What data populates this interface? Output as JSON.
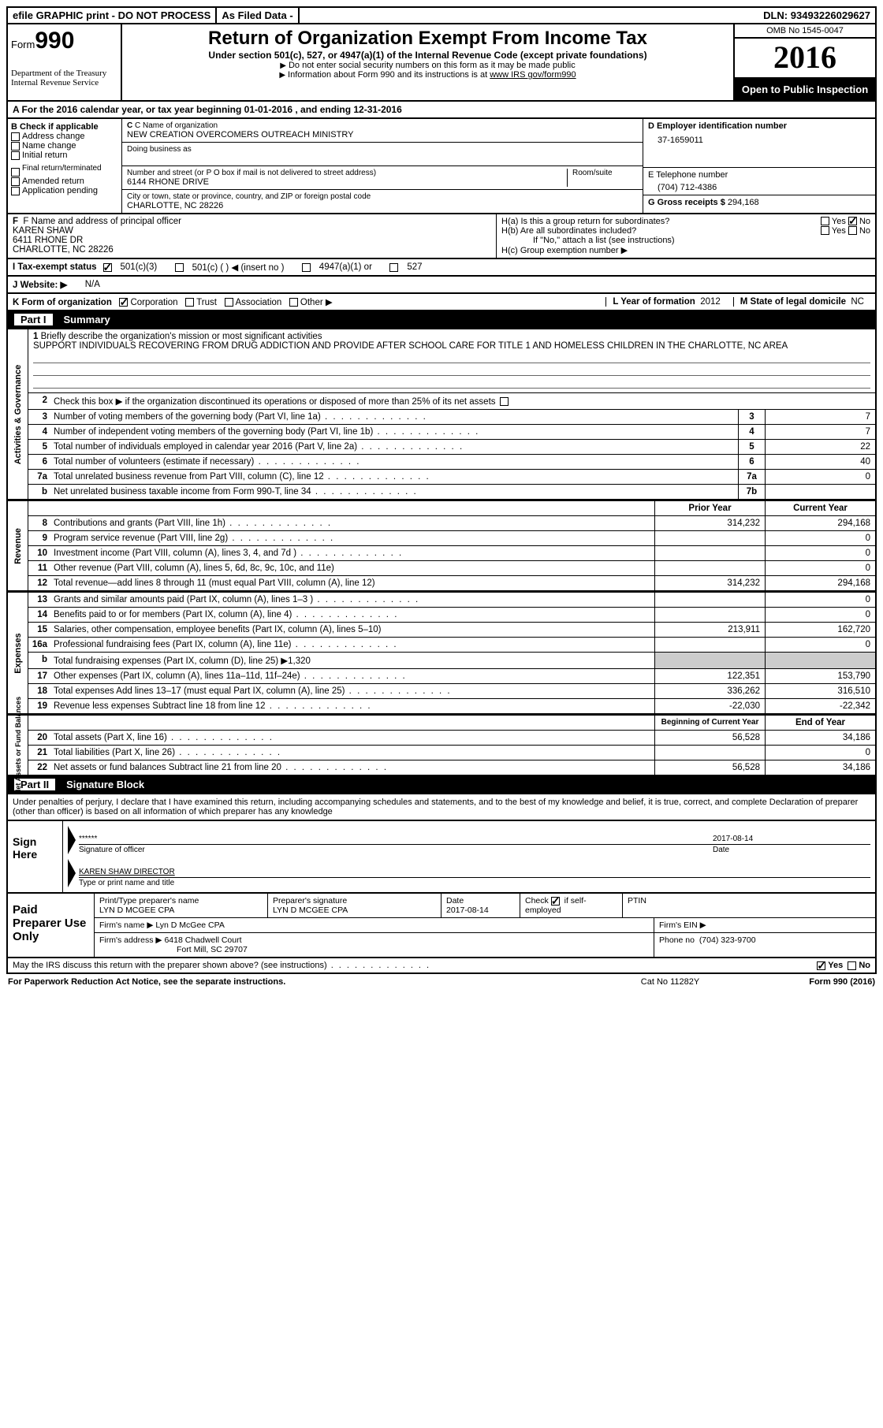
{
  "topbar": {
    "efile": "efile GRAPHIC print - DO NOT PROCESS",
    "asfiled": "As Filed Data -",
    "dln_label": "DLN:",
    "dln": "93493226029627"
  },
  "header": {
    "form_label": "Form",
    "form_num": "990",
    "dept1": "Department of the Treasury",
    "dept2": "Internal Revenue Service",
    "title": "Return of Organization Exempt From Income Tax",
    "subtitle": "Under section 501(c), 527, or 4947(a)(1) of the Internal Revenue Code (except private foundations)",
    "note1": "Do not enter social security numbers on this form as it may be made public",
    "note2": "Information about Form 990 and its instructions is at",
    "note2_link": "www IRS gov/form990",
    "omb": "OMB No  1545-0047",
    "year": "2016",
    "inspect": "Open to Public Inspection"
  },
  "rowA": "A   For the 2016 calendar year, or tax year beginning 01-01-2016    , and ending 12-31-2016",
  "colB": {
    "label": "B Check if applicable",
    "items": [
      "Address change",
      "Name change",
      "Initial return",
      "Final return/terminated",
      "Amended return",
      "Application pending"
    ]
  },
  "colC": {
    "name_lbl": "C Name of organization",
    "name": "NEW CREATION OVERCOMERS OUTREACH MINISTRY",
    "dba_lbl": "Doing business as",
    "addr_lbl": "Number and street (or P O  box if mail is not delivered to street address)",
    "room_lbl": "Room/suite",
    "addr": "6144 RHONE DRIVE",
    "city_lbl": "City or town, state or province, country, and ZIP or foreign postal code",
    "city": "CHARLOTTE, NC  28226"
  },
  "colD": {
    "lbl": "D Employer identification number",
    "val": "37-1659011"
  },
  "colE": {
    "lbl": "E Telephone number",
    "val": "(704) 712-4386"
  },
  "colG": {
    "lbl": "G Gross receipts $",
    "val": "294,168"
  },
  "colF": {
    "lbl": "F  Name and address of principal officer",
    "name": "KAREN SHAW",
    "addr": "6411 RHONE DR",
    "city": "CHARLOTTE, NC  28226"
  },
  "colH": {
    "a": "H(a)  Is this a group return for subordinates?",
    "b": "H(b)  Are all subordinates included?",
    "b_note": "If \"No,\" attach a list  (see instructions)",
    "c": "H(c)  Group exemption number ▶",
    "yes": "Yes",
    "no": "No"
  },
  "rowI": {
    "lbl": "I   Tax-exempt status",
    "opts": [
      "501(c)(3)",
      "501(c) (   ) ◀ (insert no )",
      "4947(a)(1) or",
      "527"
    ]
  },
  "rowJ": {
    "lbl": "J   Website: ▶",
    "val": "N/A"
  },
  "rowK": {
    "lbl": "K Form of organization",
    "opts": [
      "Corporation",
      "Trust",
      "Association",
      "Other ▶"
    ],
    "L_lbl": "L Year of formation",
    "L_val": "2012",
    "M_lbl": "M State of legal domicile",
    "M_val": "NC"
  },
  "part1": {
    "num": "Part I",
    "title": "Summary"
  },
  "mission": {
    "num": "1",
    "lbl": "Briefly describe the organization's mission or most significant activities",
    "text": "SUPPORT INDIVIDUALS RECOVERING FROM DRUG ADDICTION AND PROVIDE AFTER SCHOOL CARE FOR TITLE 1 AND HOMELESS CHILDREN IN THE CHARLOTTE, NC AREA"
  },
  "line2": "Check this box ▶       if the organization discontinued its operations or disposed of more than 25% of its net assets",
  "sections": {
    "gov_label": "Activities & Governance",
    "rev_label": "Revenue",
    "exp_label": "Expenses",
    "net_label": "Net Assets or Fund Balances"
  },
  "gov_lines": [
    {
      "n": "3",
      "d": "Number of voting members of the governing body (Part VI, line 1a)",
      "box": "3",
      "v": "7"
    },
    {
      "n": "4",
      "d": "Number of independent voting members of the governing body (Part VI, line 1b)",
      "box": "4",
      "v": "7"
    },
    {
      "n": "5",
      "d": "Total number of individuals employed in calendar year 2016 (Part V, line 2a)",
      "box": "5",
      "v": "22"
    },
    {
      "n": "6",
      "d": "Total number of volunteers (estimate if necessary)",
      "box": "6",
      "v": "40"
    },
    {
      "n": "7a",
      "d": "Total unrelated business revenue from Part VIII, column (C), line 12",
      "box": "7a",
      "v": "0"
    },
    {
      "n": "b",
      "d": "Net unrelated business taxable income from Form 990-T, line 34",
      "box": "7b",
      "v": ""
    }
  ],
  "col_hdrs": {
    "prior": "Prior Year",
    "current": "Current Year"
  },
  "rev_lines": [
    {
      "n": "8",
      "d": "Contributions and grants (Part VIII, line 1h)",
      "p": "314,232",
      "c": "294,168"
    },
    {
      "n": "9",
      "d": "Program service revenue (Part VIII, line 2g)",
      "p": "",
      "c": "0"
    },
    {
      "n": "10",
      "d": "Investment income (Part VIII, column (A), lines 3, 4, and 7d )",
      "p": "",
      "c": "0"
    },
    {
      "n": "11",
      "d": "Other revenue (Part VIII, column (A), lines 5, 6d, 8c, 9c, 10c, and 11e)",
      "p": "",
      "c": "0"
    },
    {
      "n": "12",
      "d": "Total revenue—add lines 8 through 11 (must equal Part VIII, column (A), line 12)",
      "p": "314,232",
      "c": "294,168"
    }
  ],
  "exp_lines": [
    {
      "n": "13",
      "d": "Grants and similar amounts paid (Part IX, column (A), lines 1–3 )",
      "p": "",
      "c": "0"
    },
    {
      "n": "14",
      "d": "Benefits paid to or for members (Part IX, column (A), line 4)",
      "p": "",
      "c": "0"
    },
    {
      "n": "15",
      "d": "Salaries, other compensation, employee benefits (Part IX, column (A), lines 5–10)",
      "p": "213,911",
      "c": "162,720"
    },
    {
      "n": "16a",
      "d": "Professional fundraising fees (Part IX, column (A), line 11e)",
      "p": "",
      "c": "0"
    },
    {
      "n": "b",
      "d": "Total fundraising expenses (Part IX, column (D), line 25) ▶1,320",
      "p": "shade",
      "c": "shade"
    },
    {
      "n": "17",
      "d": "Other expenses (Part IX, column (A), lines 11a–11d, 11f–24e)",
      "p": "122,351",
      "c": "153,790"
    },
    {
      "n": "18",
      "d": "Total expenses  Add lines 13–17 (must equal Part IX, column (A), line 25)",
      "p": "336,262",
      "c": "316,510"
    },
    {
      "n": "19",
      "d": "Revenue less expenses  Subtract line 18 from line 12",
      "p": "-22,030",
      "c": "-22,342"
    }
  ],
  "net_hdrs": {
    "begin": "Beginning of Current Year",
    "end": "End of Year"
  },
  "net_lines": [
    {
      "n": "20",
      "d": "Total assets (Part X, line 16)",
      "p": "56,528",
      "c": "34,186"
    },
    {
      "n": "21",
      "d": "Total liabilities (Part X, line 26)",
      "p": "",
      "c": "0"
    },
    {
      "n": "22",
      "d": "Net assets or fund balances  Subtract line 21 from line 20",
      "p": "56,528",
      "c": "34,186"
    }
  ],
  "part2": {
    "num": "Part II",
    "title": "Signature Block"
  },
  "sig_decl": "Under penalties of perjury, I declare that I have examined this return, including accompanying schedules and statements, and to the best of my knowledge and belief, it is true, correct, and complete  Declaration of preparer (other than officer) is based on all information of which preparer has any knowledge",
  "sign": {
    "label": "Sign Here",
    "stars": "******",
    "sig_lbl": "Signature of officer",
    "date": "2017-08-14",
    "date_lbl": "Date",
    "name": "KAREN SHAW  DIRECTOR",
    "name_lbl": "Type or print name and title"
  },
  "paid": {
    "label": "Paid Preparer Use Only",
    "prep_name_lbl": "Print/Type preparer's name",
    "prep_name": "LYN D MCGEE CPA",
    "prep_sig_lbl": "Preparer's signature",
    "prep_sig": "LYN D MCGEE CPA",
    "date_lbl": "Date",
    "date": "2017-08-14",
    "self_lbl": "Check        if self-employed",
    "ptin_lbl": "PTIN",
    "firm_name_lbl": "Firm's name    ▶",
    "firm_name": "Lyn D McGee CPA",
    "firm_ein_lbl": "Firm's EIN ▶",
    "firm_addr_lbl": "Firm's address ▶",
    "firm_addr1": "6418 Chadwell Court",
    "firm_addr2": "Fort Mill, SC  29707",
    "phone_lbl": "Phone no",
    "phone": "(704) 323-9700"
  },
  "discuss": {
    "q": "May the IRS discuss this return with the preparer shown above? (see instructions)",
    "yes": "Yes",
    "no": "No"
  },
  "footer": {
    "pra": "For Paperwork Reduction Act Notice, see the separate instructions.",
    "cat": "Cat No  11282Y",
    "form": "Form 990 (2016)"
  }
}
